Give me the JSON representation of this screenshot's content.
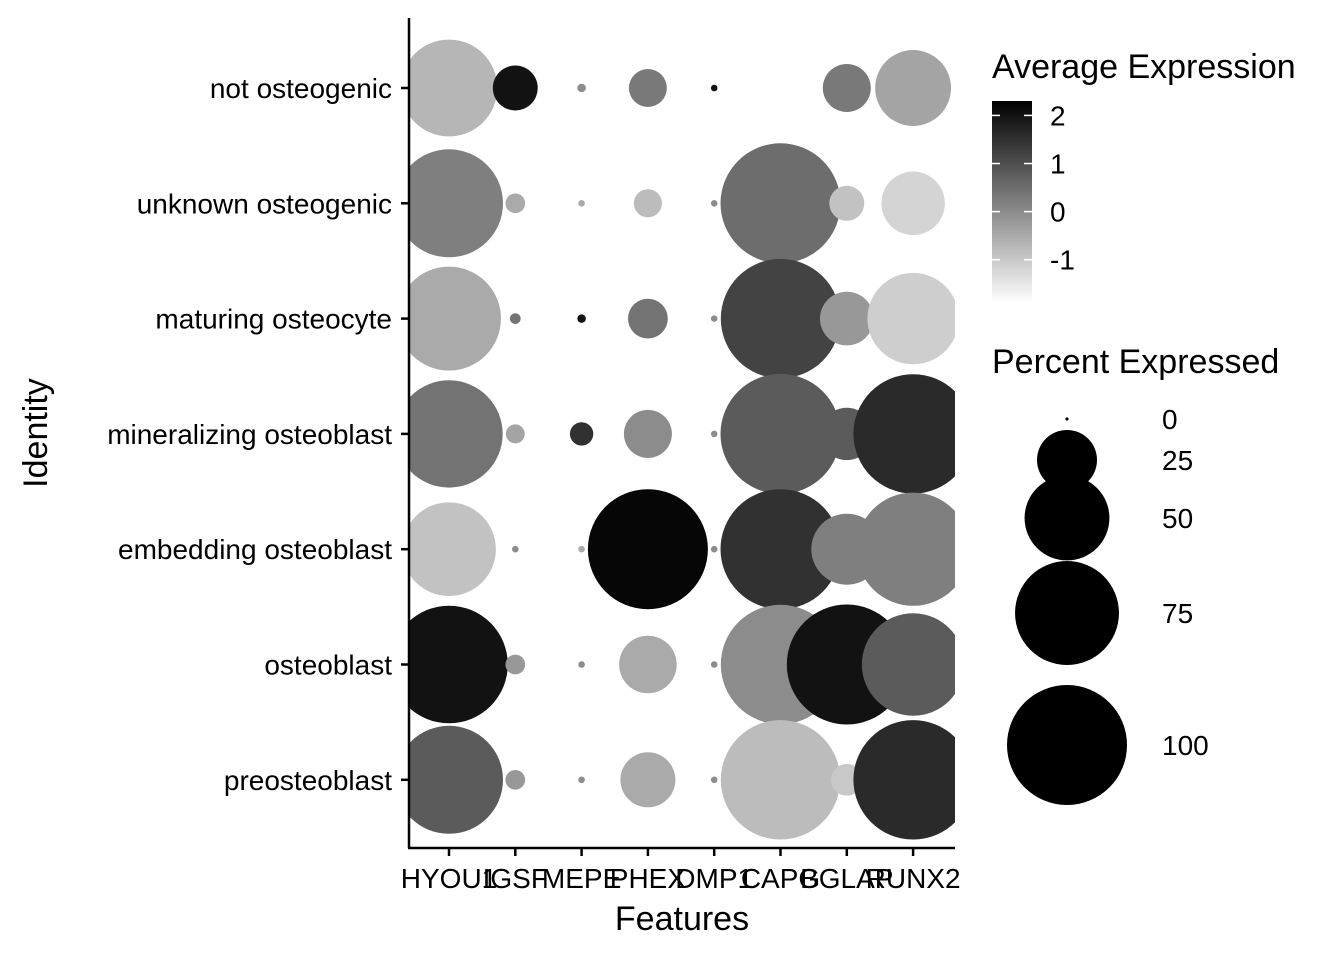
{
  "chart_data": {
    "type": "dot",
    "xlabel": "Features",
    "ylabel": "Identity",
    "features": [
      "HYOU1",
      "IGSF",
      "MEPE",
      "PHEX",
      "DMP1",
      "CAPG",
      "BGLAP",
      "RUNX2"
    ],
    "identities": [
      "not osteogenic",
      "unknown osteogenic",
      "maturing osteocyte",
      "mineralizing osteoblast",
      "embedding osteoblast",
      "osteoblast",
      "preosteoblast"
    ],
    "avg_expression": [
      [
        -0.7,
        2.0,
        0.0,
        0.3,
        2.0,
        -2.0,
        0.3,
        -0.4
      ],
      [
        0.2,
        -0.5,
        -0.5,
        -0.8,
        0.0,
        0.5,
        -0.9,
        -1.2
      ],
      [
        -0.5,
        0.4,
        2.0,
        0.4,
        0.0,
        1.2,
        -0.2,
        -1.1
      ],
      [
        0.4,
        -0.4,
        1.5,
        0.0,
        0.0,
        0.8,
        0.8,
        1.6
      ],
      [
        -0.9,
        0.0,
        -0.5,
        2.2,
        0.0,
        1.5,
        0.2,
        0.2
      ],
      [
        2.0,
        -0.2,
        0.0,
        -0.5,
        0.0,
        0.0,
        2.0,
        0.8
      ],
      [
        0.8,
        -0.2,
        0.0,
        -0.5,
        0.0,
        -0.8,
        -1.0,
        1.6
      ]
    ],
    "pct_expressed": [
      [
        65,
        14,
        0.5,
        10,
        0.3,
        92,
        16,
        40
      ],
      [
        81,
        2.7,
        0.3,
        5.5,
        0.3,
        100,
        8.5,
        28
      ],
      [
        75,
        0.8,
        0.5,
        11,
        0.3,
        99,
        20,
        58
      ],
      [
        80,
        2.5,
        3.8,
        16,
        0.3,
        100,
        19,
        99
      ],
      [
        61,
        0.3,
        0.3,
        100,
        0.3,
        100,
        35,
        89
      ],
      [
        96,
        2.7,
        0.3,
        23,
        0.3,
        99,
        100,
        73
      ],
      [
        81,
        2.7,
        0.3,
        21,
        0.3,
        99,
        7,
        99
      ]
    ],
    "color_scale": {
      "title": "Average Expression",
      "low_color": "#ffffff",
      "high_color": "#000000",
      "domain": [
        -1.9,
        2.3
      ],
      "ticks": [
        2,
        1,
        0,
        -1
      ],
      "tick_labels": [
        "2",
        "1",
        "0",
        "-1"
      ]
    },
    "size_scale": {
      "title": "Percent Expressed",
      "breaks": [
        0,
        25,
        50,
        75,
        100
      ],
      "labels": [
        "0",
        "25",
        "50",
        "75",
        "100"
      ]
    }
  }
}
